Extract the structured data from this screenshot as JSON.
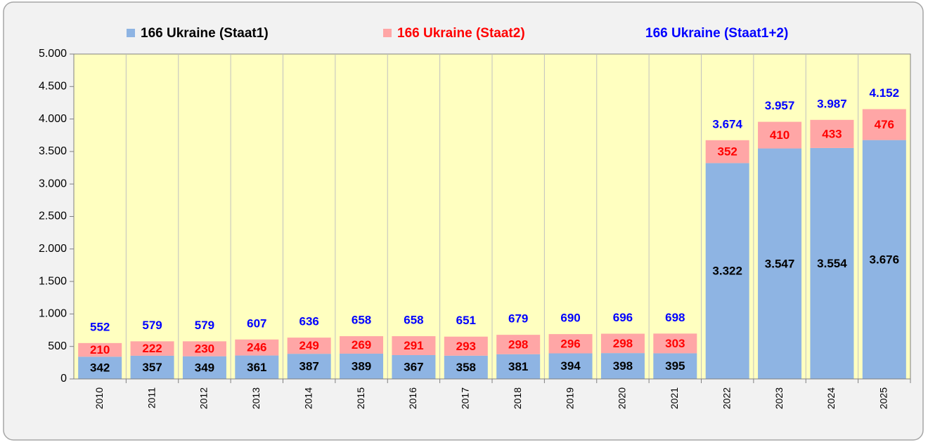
{
  "chart_data": {
    "type": "stacked_bar",
    "categories": [
      "2010",
      "2011",
      "2012",
      "2013",
      "2014",
      "2015",
      "2016",
      "2017",
      "2018",
      "2019",
      "2020",
      "2021",
      "2022",
      "2023",
      "2024",
      "2025"
    ],
    "series": [
      {
        "name": "166 Ukraine (Staat1)",
        "color": "#8eb4e3",
        "values": [
          342,
          357,
          349,
          361,
          387,
          389,
          367,
          358,
          381,
          394,
          398,
          395,
          3322,
          3547,
          3554,
          3676
        ],
        "value_labels": [
          "342",
          "357",
          "349",
          "361",
          "387",
          "389",
          "367",
          "358",
          "381",
          "394",
          "398",
          "395",
          "3.322",
          "3.547",
          "3.554",
          "3.676"
        ],
        "label_color": "#000000"
      },
      {
        "name": "166 Ukraine (Staat2)",
        "color": "#ffa6a6",
        "values": [
          210,
          222,
          230,
          246,
          249,
          269,
          291,
          293,
          298,
          296,
          298,
          303,
          352,
          410,
          433,
          476
        ],
        "value_labels": [
          "210",
          "222",
          "230",
          "246",
          "249",
          "269",
          "291",
          "293",
          "298",
          "296",
          "298",
          "303",
          "352",
          "410",
          "433",
          "476"
        ],
        "label_color": "#ff0000"
      }
    ],
    "totals": {
      "name": "166 Ukraine (Staat1+2)",
      "color": "#0000ff",
      "values": [
        552,
        579,
        579,
        607,
        636,
        658,
        658,
        651,
        679,
        690,
        696,
        698,
        3674,
        3957,
        3987,
        4152
      ],
      "value_labels": [
        "552",
        "579",
        "579",
        "607",
        "636",
        "658",
        "658",
        "651",
        "679",
        "690",
        "696",
        "698",
        "3.674",
        "3.957",
        "3.987",
        "4.152"
      ]
    },
    "ylim": [
      0,
      5000
    ],
    "yticks": [
      0,
      500,
      {
        "value": 1000,
        "label": "1.000"
      },
      {
        "value": 1500,
        "label": "1.500"
      },
      {
        "value": 2000,
        "label": "2.000"
      },
      {
        "value": 2500,
        "label": "2.500"
      },
      {
        "value": 3000,
        "label": "3.000"
      },
      {
        "value": 3500,
        "label": "3.500"
      },
      {
        "value": 4000,
        "label": "4.000"
      },
      {
        "value": 4500,
        "label": "4.500"
      },
      {
        "value": 5000,
        "label": "5.000"
      }
    ],
    "grid": true,
    "plot_background": "#ffffc0"
  }
}
